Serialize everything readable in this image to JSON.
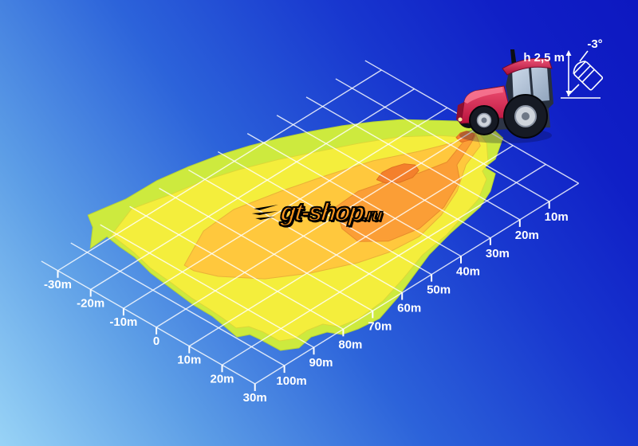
{
  "annotation": {
    "height_label": "h 2,5 m",
    "angle_label": "-3°"
  },
  "watermark": {
    "name": "gt-shop",
    "suffix": ".ru"
  },
  "colors": {
    "bg_light": "#98d3f6",
    "bg_mid": "#2c63da",
    "bg_deep": "#0d18c0",
    "grid": "#ffffff",
    "tick_text": "#ffffff",
    "tractor_red": "#d6224c",
    "watermark_orange": "#f7941e"
  },
  "chart_data": {
    "type": "contour",
    "title": "",
    "description": "Work light beam illuminance footprint on ground, tractor rear-mounted lamp, height 2.5 m, tilt -3 deg",
    "distance_axis": {
      "unit": "m",
      "range": [
        0,
        110
      ],
      "tick_edge_lateral": 30,
      "ticks": [
        {
          "value": 10,
          "label": "10m"
        },
        {
          "value": 20,
          "label": "20m"
        },
        {
          "value": 30,
          "label": "30m"
        },
        {
          "value": 40,
          "label": "40m"
        },
        {
          "value": 50,
          "label": "50m"
        },
        {
          "value": 60,
          "label": "60m"
        },
        {
          "value": 70,
          "label": "70m"
        },
        {
          "value": 80,
          "label": "80m"
        },
        {
          "value": 90,
          "label": "90m"
        },
        {
          "value": 100,
          "label": "100m"
        }
      ]
    },
    "lateral_axis": {
      "unit": "m",
      "range": [
        -35,
        30
      ],
      "tick_edge_distance": 110,
      "ticks": [
        {
          "value": -30,
          "label": "-30m"
        },
        {
          "value": -20,
          "label": "-20m"
        },
        {
          "value": -10,
          "label": "-10m"
        },
        {
          "value": 0,
          "label": "0"
        },
        {
          "value": 10,
          "label": "10m"
        },
        {
          "value": 20,
          "label": "20m"
        },
        {
          "value": 30,
          "label": "30m"
        }
      ]
    },
    "grid": {
      "step": 10,
      "row_range": [
        0,
        110
      ],
      "row_span_lateral": [
        -35,
        30
      ],
      "col_range": [
        -30,
        30
      ],
      "col_span_distance": [
        0,
        110
      ]
    },
    "zones": [
      {
        "name": "outer",
        "color": "#cdea3e",
        "stroke": "#b7d337",
        "points": [
          [
            -3.6,
            -3
          ],
          [
            6.5,
            -0.5
          ],
          [
            10.7,
            6.8
          ],
          [
            11.1,
            10.8
          ],
          [
            14.4,
            10.9
          ],
          [
            18.1,
            16.7
          ],
          [
            20.5,
            22.9
          ],
          [
            22.5,
            35.2
          ],
          [
            24.6,
            44.8
          ],
          [
            27.6,
            53.6
          ],
          [
            30.5,
            61.9
          ],
          [
            33,
            71
          ],
          [
            32.3,
            77.5
          ],
          [
            31.2,
            81.7
          ],
          [
            28.2,
            83.5
          ],
          [
            26.9,
            87.5
          ],
          [
            27.8,
            92.6
          ],
          [
            25.5,
            96.3
          ],
          [
            19.9,
            96.5
          ],
          [
            16.6,
            96.8
          ],
          [
            15.2,
            99.6
          ],
          [
            10.6,
            98.6
          ],
          [
            6,
            97.7
          ],
          [
            0.2,
            97.6
          ],
          [
            -7.2,
            96.6
          ],
          [
            -14.7,
            95.5
          ],
          [
            -21.3,
            93.6
          ],
          [
            -26.3,
            93.1
          ],
          [
            -30.9,
            92.3
          ],
          [
            -30.5,
            98.4
          ],
          [
            -35.5,
            92
          ],
          [
            -39.4,
            89.3
          ],
          [
            -37.5,
            78.5
          ],
          [
            -37.3,
            68.3
          ],
          [
            -35.9,
            59.4
          ],
          [
            -34,
            50.9
          ],
          [
            -31.5,
            43.1
          ],
          [
            -28.6,
            35.8
          ],
          [
            -25.5,
            29
          ],
          [
            -22,
            22.3
          ],
          [
            -18.1,
            16.1
          ],
          [
            -14.3,
            10.9
          ],
          [
            -5.1,
            2.2
          ],
          [
            -2.5,
            2.1
          ],
          [
            0.4,
            0.9
          ]
        ]
      },
      {
        "name": "bright",
        "color": "#f4ee3c",
        "stroke": "#dcd838",
        "points": [
          [
            1.2,
            1.8
          ],
          [
            5.3,
            3.7
          ],
          [
            10.6,
            9.1
          ],
          [
            11.7,
            12.3
          ],
          [
            14.4,
            13.9
          ],
          [
            18.2,
            20.9
          ],
          [
            22.3,
            36.3
          ],
          [
            23.6,
            45.9
          ],
          [
            26.6,
            55.9
          ],
          [
            29.1,
            65.5
          ],
          [
            29.8,
            74.4
          ],
          [
            28.7,
            80
          ],
          [
            25.5,
            81.9
          ],
          [
            24.6,
            86.3
          ],
          [
            24.8,
            90.5
          ],
          [
            22.9,
            93.8
          ],
          [
            18.1,
            93.9
          ],
          [
            14.4,
            94.7
          ],
          [
            12.8,
            97.2
          ],
          [
            8.4,
            96.6
          ],
          [
            3.7,
            96.2
          ],
          [
            -2,
            95.9
          ],
          [
            -9,
            94.9
          ],
          [
            -16.2,
            94.1
          ],
          [
            -22.6,
            92.4
          ],
          [
            -30.6,
            91.1
          ],
          [
            -34.1,
            80.3
          ],
          [
            -31.7,
            70.3
          ],
          [
            -29.9,
            60.6
          ],
          [
            -27.1,
            51.6
          ],
          [
            -23.4,
            42.1
          ],
          [
            -19.2,
            33.4
          ],
          [
            -14.9,
            24.6
          ],
          [
            -10.2,
            16.2
          ],
          [
            -4.3,
            9.3
          ],
          [
            -0.1,
            5.8
          ]
        ]
      },
      {
        "name": "strong",
        "color": "#ffc83d",
        "stroke": "#eab238",
        "points": [
          [
            0.9,
            2.6
          ],
          [
            4.9,
            5.4
          ],
          [
            7.5,
            13.2
          ],
          [
            12.8,
            22.1
          ],
          [
            16.4,
            31.5
          ],
          [
            18.4,
            41.2
          ],
          [
            17.6,
            50.8
          ],
          [
            15.4,
            58.7
          ],
          [
            10.6,
            69.3
          ],
          [
            4.8,
            78.5
          ],
          [
            -3.2,
            85.4
          ],
          [
            -8.5,
            87.8
          ],
          [
            -11.4,
            87.8
          ],
          [
            -17.1,
            74.9
          ],
          [
            -17.8,
            63.9
          ],
          [
            -15,
            50.9
          ],
          [
            -11.8,
            38.9
          ],
          [
            -8.2,
            27.2
          ],
          [
            -3.3,
            16.9
          ],
          [
            0.5,
            7.3
          ]
        ]
      },
      {
        "name": "intense",
        "color": "#fb9e36",
        "stroke": "#e88c2c",
        "points": [
          [
            0.6,
            5
          ],
          [
            1.5,
            3.3
          ],
          [
            2.8,
            6.3
          ],
          [
            6.1,
            14.7
          ],
          [
            10.6,
            18.7
          ],
          [
            14.8,
            28.8
          ],
          [
            16.4,
            38.9
          ],
          [
            14.7,
            47.6
          ],
          [
            10,
            52.6
          ],
          [
            4.2,
            51.6
          ],
          [
            -2.3,
            46.5
          ],
          [
            -2.8,
            38.3
          ],
          [
            -0.7,
            30.4
          ],
          [
            2.2,
            23.1
          ],
          [
            3.8,
            15.5
          ]
        ]
      },
      {
        "name": "core",
        "color": "#f4802c",
        "stroke": "#de6f22",
        "points": [
          [
            -3.5,
            26
          ],
          [
            -2.5,
            23
          ],
          [
            -0.5,
            21.5
          ],
          [
            1.5,
            22.5
          ],
          [
            2.3,
            25.5
          ],
          [
            1.5,
            29
          ],
          [
            -0.5,
            31.5
          ],
          [
            -2.8,
            32
          ],
          [
            -3.8,
            29
          ]
        ]
      },
      {
        "name": "core-near",
        "color": "#f4802c",
        "stroke": "#de6f22",
        "points": [
          [
            -1,
            3.5
          ],
          [
            1,
            3
          ],
          [
            2,
            5
          ],
          [
            1,
            7.5
          ],
          [
            -1,
            7
          ],
          [
            -1.5,
            5
          ]
        ]
      }
    ]
  }
}
